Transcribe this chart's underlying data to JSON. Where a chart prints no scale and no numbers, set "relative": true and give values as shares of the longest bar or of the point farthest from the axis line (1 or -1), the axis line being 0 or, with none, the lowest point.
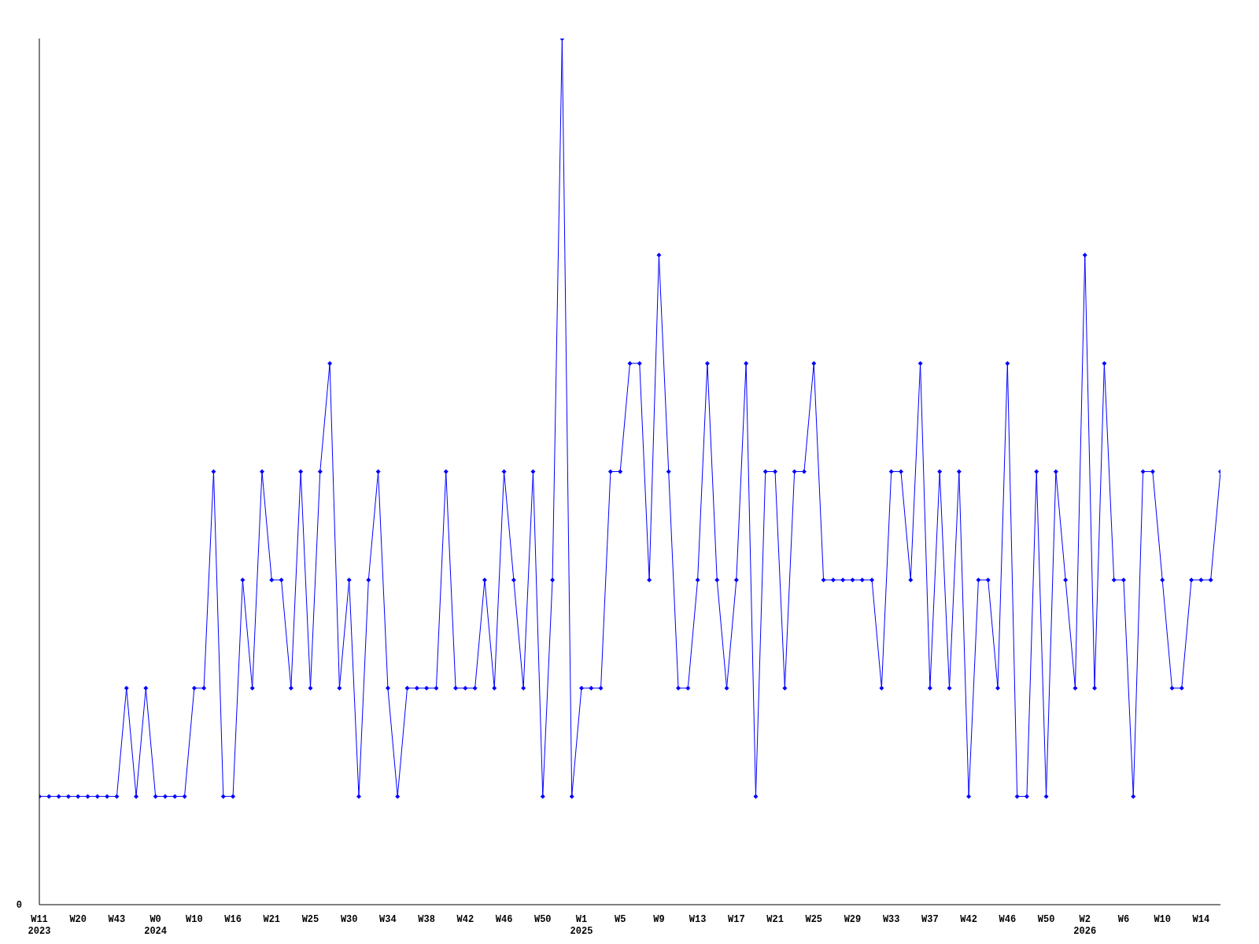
{
  "chart_data": {
    "type": "line",
    "relative": true,
    "color": "#0000ff",
    "marker": "diamond",
    "line_style": "solid",
    "grid": false,
    "legend": false,
    "annotations": [
      "0"
    ],
    "categories": [
      "W11\n2023",
      null,
      null,
      null,
      "W20",
      null,
      null,
      null,
      "W43",
      null,
      null,
      null,
      "W0\n2024",
      null,
      null,
      null,
      "W10",
      null,
      null,
      null,
      "W16",
      null,
      null,
      null,
      "W21",
      null,
      null,
      null,
      "W25",
      null,
      null,
      null,
      "W30",
      null,
      null,
      null,
      "W34",
      null,
      null,
      null,
      "W38",
      null,
      null,
      null,
      "W42",
      null,
      null,
      null,
      "W46",
      null,
      null,
      null,
      "W50",
      null,
      null,
      null,
      "W1\n2025",
      null,
      null,
      null,
      "W5",
      null,
      null,
      null,
      "W9",
      null,
      null,
      null,
      "W13",
      null,
      null,
      null,
      "W17",
      null,
      null,
      null,
      "W21",
      null,
      null,
      null,
      "W25",
      null,
      null,
      null,
      "W29",
      null,
      null,
      null,
      "W33",
      null,
      null,
      null,
      "W37",
      null,
      null,
      null,
      "W42",
      null,
      null,
      null,
      "W46",
      null,
      null,
      null,
      "W50",
      null,
      null,
      null,
      "W2\n2026",
      null,
      null,
      null,
      "W6",
      null,
      null,
      null,
      "W10",
      null,
      null,
      null,
      "W14",
      null,
      null
    ],
    "values": [
      0.125,
      0.125,
      0.125,
      0.125,
      0.125,
      0.125,
      0.125,
      0.125,
      0.125,
      0.25,
      0.125,
      0.25,
      0.125,
      0.125,
      0.125,
      0.125,
      0.25,
      0.25,
      0.5,
      0.125,
      0.125,
      0.375,
      0.25,
      0.5,
      0.375,
      0.375,
      0.25,
      0.5,
      0.25,
      0.5,
      0.625,
      0.25,
      0.375,
      0.125,
      0.375,
      0.5,
      0.25,
      0.125,
      0.25,
      0.25,
      0.25,
      0.25,
      0.5,
      0.25,
      0.25,
      0.25,
      0.375,
      0.25,
      0.5,
      0.375,
      0.25,
      0.5,
      0.125,
      0.375,
      1,
      0.125,
      0.25,
      0.25,
      0.25,
      0.5,
      0.5,
      0.625,
      0.625,
      0.375,
      0.75,
      0.5,
      0.25,
      0.25,
      0.375,
      0.625,
      0.375,
      0.25,
      0.375,
      0.625,
      0.125,
      0.5,
      0.5,
      0.25,
      0.5,
      0.5,
      0.625,
      0.375,
      0.375,
      0.375,
      0.375,
      0.375,
      0.375,
      0.25,
      0.5,
      0.5,
      0.375,
      0.625,
      0.25,
      0.5,
      0.25,
      0.5,
      0.125,
      0.375,
      0.375,
      0.25,
      0.625,
      0.125,
      0.125,
      0.5,
      0.125,
      0.5,
      0.375,
      0.25,
      0.75,
      0.25,
      0.625,
      0.375,
      0.375,
      0.125,
      0.5,
      0.5,
      0.375,
      0.25,
      0.25,
      0.375,
      0.375,
      0.375,
      0.5
    ]
  }
}
